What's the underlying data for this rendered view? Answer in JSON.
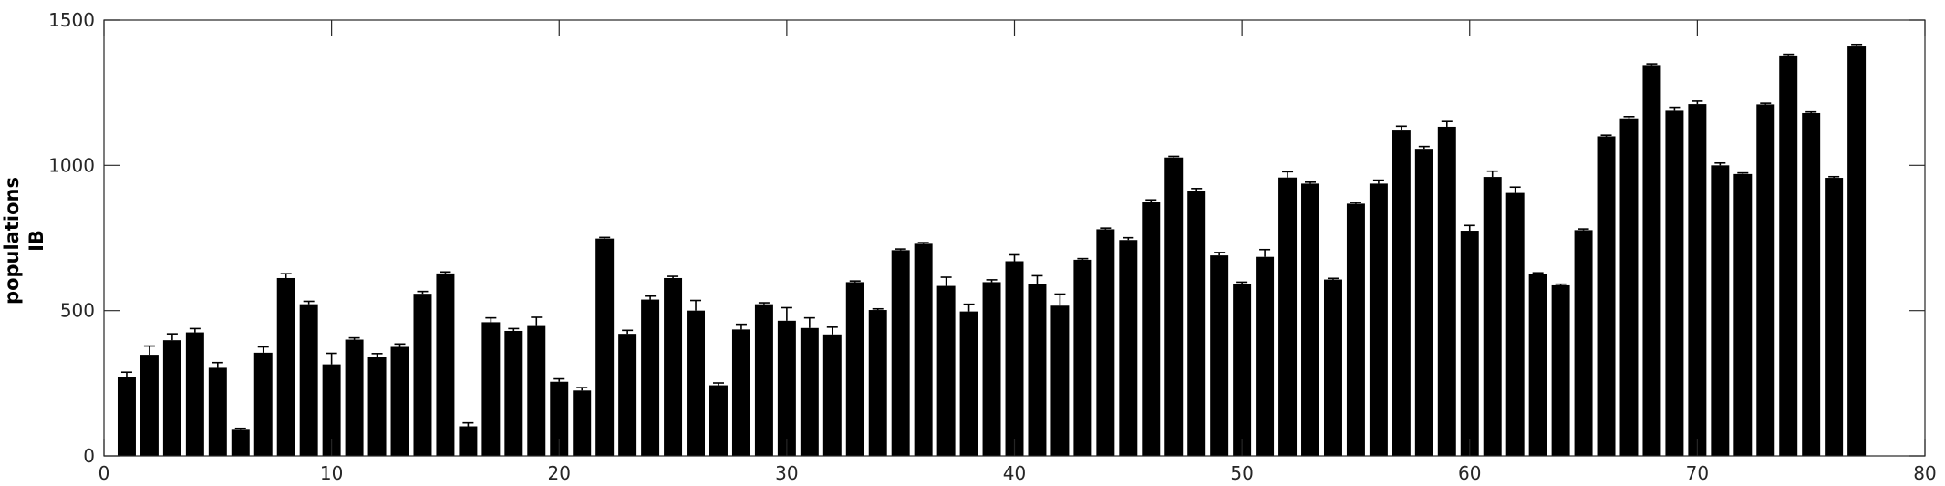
{
  "chart_data": {
    "type": "bar",
    "ylabel_lines": [
      "populations",
      "IB"
    ],
    "xlim": [
      0,
      80
    ],
    "ylim": [
      0,
      1500
    ],
    "xticks": [
      0,
      10,
      20,
      30,
      40,
      50,
      60,
      70,
      80
    ],
    "yticks": [
      0,
      500,
      1000,
      1500
    ],
    "grid": false,
    "colors": {
      "bar": "#000000",
      "axis": "#262626"
    },
    "x": [
      1,
      2,
      3,
      4,
      5,
      6,
      7,
      8,
      9,
      10,
      11,
      12,
      13,
      14,
      15,
      16,
      17,
      18,
      19,
      20,
      21,
      22,
      23,
      24,
      25,
      26,
      27,
      28,
      29,
      30,
      31,
      32,
      33,
      34,
      35,
      36,
      37,
      38,
      39,
      40,
      41,
      42,
      43,
      44,
      45,
      46,
      47,
      48,
      49,
      50,
      51,
      52,
      53,
      54,
      55,
      56,
      57,
      58,
      59,
      60,
      61,
      62,
      63,
      64,
      65,
      66,
      67,
      68,
      69,
      70,
      71,
      72,
      73,
      74,
      75,
      76,
      77
    ],
    "values": [
      270,
      348,
      398,
      425,
      303,
      90,
      355,
      612,
      522,
      315,
      400,
      340,
      375,
      558,
      628,
      102,
      460,
      430,
      450,
      255,
      225,
      748,
      420,
      538,
      612,
      500,
      243,
      435,
      522,
      465,
      440,
      418,
      598,
      502,
      708,
      730,
      585,
      497,
      598,
      670,
      590,
      517,
      675,
      780,
      743,
      873,
      1027,
      910,
      690,
      593,
      685,
      958,
      937,
      607,
      868,
      937,
      1120,
      1057,
      1133,
      775,
      960,
      905,
      626,
      587,
      777,
      1100,
      1162,
      1345,
      1188,
      1211,
      1000,
      970,
      1210,
      1378,
      1180,
      957,
      1412
    ],
    "errors": [
      18,
      30,
      22,
      13,
      18,
      5,
      20,
      15,
      10,
      38,
      6,
      12,
      10,
      8,
      5,
      12,
      15,
      8,
      27,
      10,
      10,
      4,
      12,
      12,
      6,
      35,
      8,
      18,
      5,
      45,
      35,
      25,
      4,
      4,
      4,
      4,
      30,
      25,
      8,
      22,
      30,
      40,
      4,
      4,
      8,
      8,
      4,
      10,
      10,
      5,
      25,
      20,
      5,
      4,
      4,
      12,
      15,
      8,
      18,
      18,
      20,
      20,
      4,
      4,
      4,
      4,
      6,
      4,
      12,
      10,
      8,
      4,
      4,
      4,
      4,
      4,
      4
    ]
  }
}
